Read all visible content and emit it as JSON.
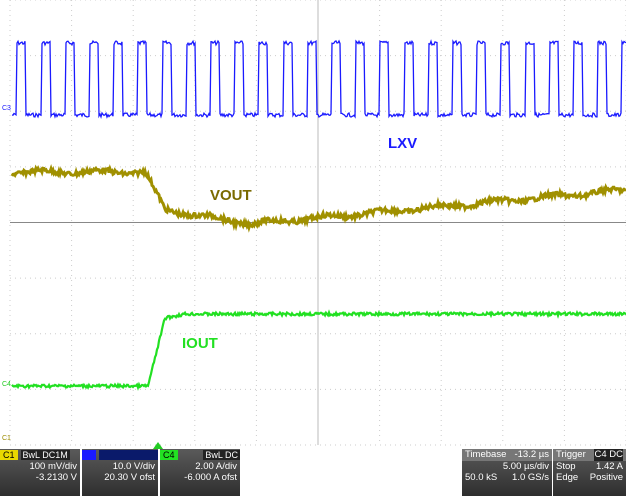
{
  "traces": {
    "lxv": "LXV",
    "vout": "VOUT",
    "iout": "IOUT"
  },
  "markers": [
    "C3",
    "C4",
    "C1"
  ],
  "channels": [
    {
      "name": "C1",
      "mode": "BwL DC1M",
      "scale": "100 mV/div",
      "offset": "-3.2130 V"
    },
    {
      "scale": "10.0 V/div",
      "offset": "20.30 V ofst"
    },
    {
      "name": "C4",
      "mode": "BwL DC",
      "scale": "2.00 A/div",
      "offset": "-6.000 A ofst"
    }
  ],
  "timebase": {
    "label": "Timebase",
    "value": "-13.2 µs",
    "scale": "5.00 µs/div",
    "samples": "50.0 kS",
    "rate": "1.0 GS/s"
  },
  "trigger": {
    "label": "Trigger",
    "source": "C4 DC",
    "mode": "Stop",
    "level": "1.42 A",
    "type": "Edge",
    "slope": "Positive"
  }
}
